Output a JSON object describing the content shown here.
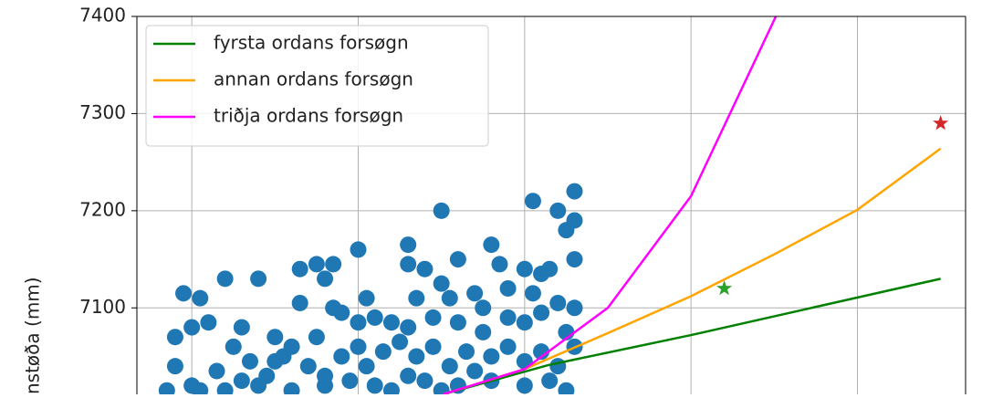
{
  "chart_data": {
    "type": "line",
    "y_label": "nstøða (mm)",
    "xlim": [
      0.67,
      5.65
    ],
    "xticks": [
      1,
      2,
      3,
      4,
      5
    ],
    "ylim": [
      7011,
      7400
    ],
    "yticks": [
      7100,
      7200,
      7300,
      7400
    ],
    "grid": true,
    "legend": "upper left",
    "series": [
      {
        "type": "scatter",
        "color": "#1f77b4",
        "x": [
          3.3,
          3.3,
          3.2,
          3.05,
          2.5,
          3.3,
          3.25,
          2.3,
          2.8,
          2.0,
          2.6,
          2.85,
          3.0,
          3.1,
          3.15,
          0.95,
          1.05,
          1.2,
          1.4,
          1.65,
          1.75,
          1.8,
          1.85,
          2.3,
          2.4,
          2.5,
          2.35,
          2.55,
          2.7,
          2.9,
          3.05,
          3.2,
          3.3,
          1.0,
          0.9,
          1.1,
          1.3,
          1.5,
          1.6,
          1.75,
          1.85,
          1.9,
          2.0,
          2.1,
          2.2,
          2.3,
          2.45,
          2.6,
          2.75,
          2.9,
          3.0,
          3.1,
          3.25,
          0.9,
          1.0,
          1.15,
          1.25,
          1.35,
          1.45,
          1.55,
          1.7,
          1.8,
          1.9,
          2.0,
          2.05,
          2.15,
          2.25,
          2.35,
          2.45,
          2.55,
          2.65,
          2.7,
          2.8,
          2.9,
          3.0,
          3.1,
          3.2,
          3.3,
          0.85,
          1.05,
          1.2,
          1.4,
          1.6,
          1.8,
          1.95,
          2.1,
          2.3,
          2.4,
          2.6,
          2.8,
          3.0,
          3.15,
          3.25,
          2.5,
          2.2,
          1.5,
          1.3,
          2.75,
          1.65,
          2.05
        ],
        "values": [
          7220,
          7190,
          7200,
          7210,
          7200,
          7150,
          7180,
          7165,
          7165,
          7160,
          7150,
          7145,
          7140,
          7135,
          7140,
          7115,
          7110,
          7130,
          7130,
          7140,
          7145,
          7130,
          7145,
          7145,
          7140,
          7125,
          7110,
          7110,
          7115,
          7120,
          7115,
          7105,
          7100,
          7080,
          7070,
          7085,
          7080,
          7070,
          7060,
          7070,
          7100,
          7095,
          7085,
          7090,
          7085,
          7080,
          7090,
          7085,
          7075,
          7090,
          7085,
          7095,
          7075,
          7040,
          7020,
          7035,
          7060,
          7045,
          7030,
          7050,
          7040,
          7030,
          7050,
          7060,
          7040,
          7055,
          7065,
          7050,
          7060,
          7040,
          7055,
          7035,
          7050,
          7060,
          7045,
          7055,
          7040,
          7060,
          7015,
          7015,
          7015,
          7020,
          7015,
          7020,
          7025,
          7020,
          7030,
          7025,
          7020,
          7025,
          7020,
          7025,
          7015,
          7015,
          7015,
          7045,
          7025,
          7100,
          7105,
          7110
        ]
      },
      {
        "type": "line",
        "name": "fyrsta ordans forsøgn",
        "color": "green",
        "x": [
          2.51,
          3.14,
          4.0,
          5.5
        ],
        "values": [
          7011,
          7041,
          7072,
          7130
        ]
      },
      {
        "type": "line",
        "name": "annan ordans forsøgn",
        "color": "orange",
        "x": [
          2.51,
          3.0,
          3.5,
          4.0,
          4.51,
          5.0,
          5.5
        ],
        "values": [
          7011,
          7037,
          7074,
          7112,
          7156,
          7201,
          7264
        ]
      },
      {
        "type": "line",
        "name": "triðja ordans forsøgn",
        "color": "magenta",
        "x": [
          2.51,
          3.0,
          3.5,
          4.0,
          4.51
        ],
        "values": [
          7011,
          7037,
          7100,
          7215,
          7400
        ]
      },
      {
        "type": "star",
        "color": "#2ca02c",
        "x": [
          4.2
        ],
        "values": [
          7120
        ]
      },
      {
        "type": "star",
        "color": "#d62728",
        "x": [
          5.5
        ],
        "values": [
          7290
        ]
      }
    ]
  }
}
